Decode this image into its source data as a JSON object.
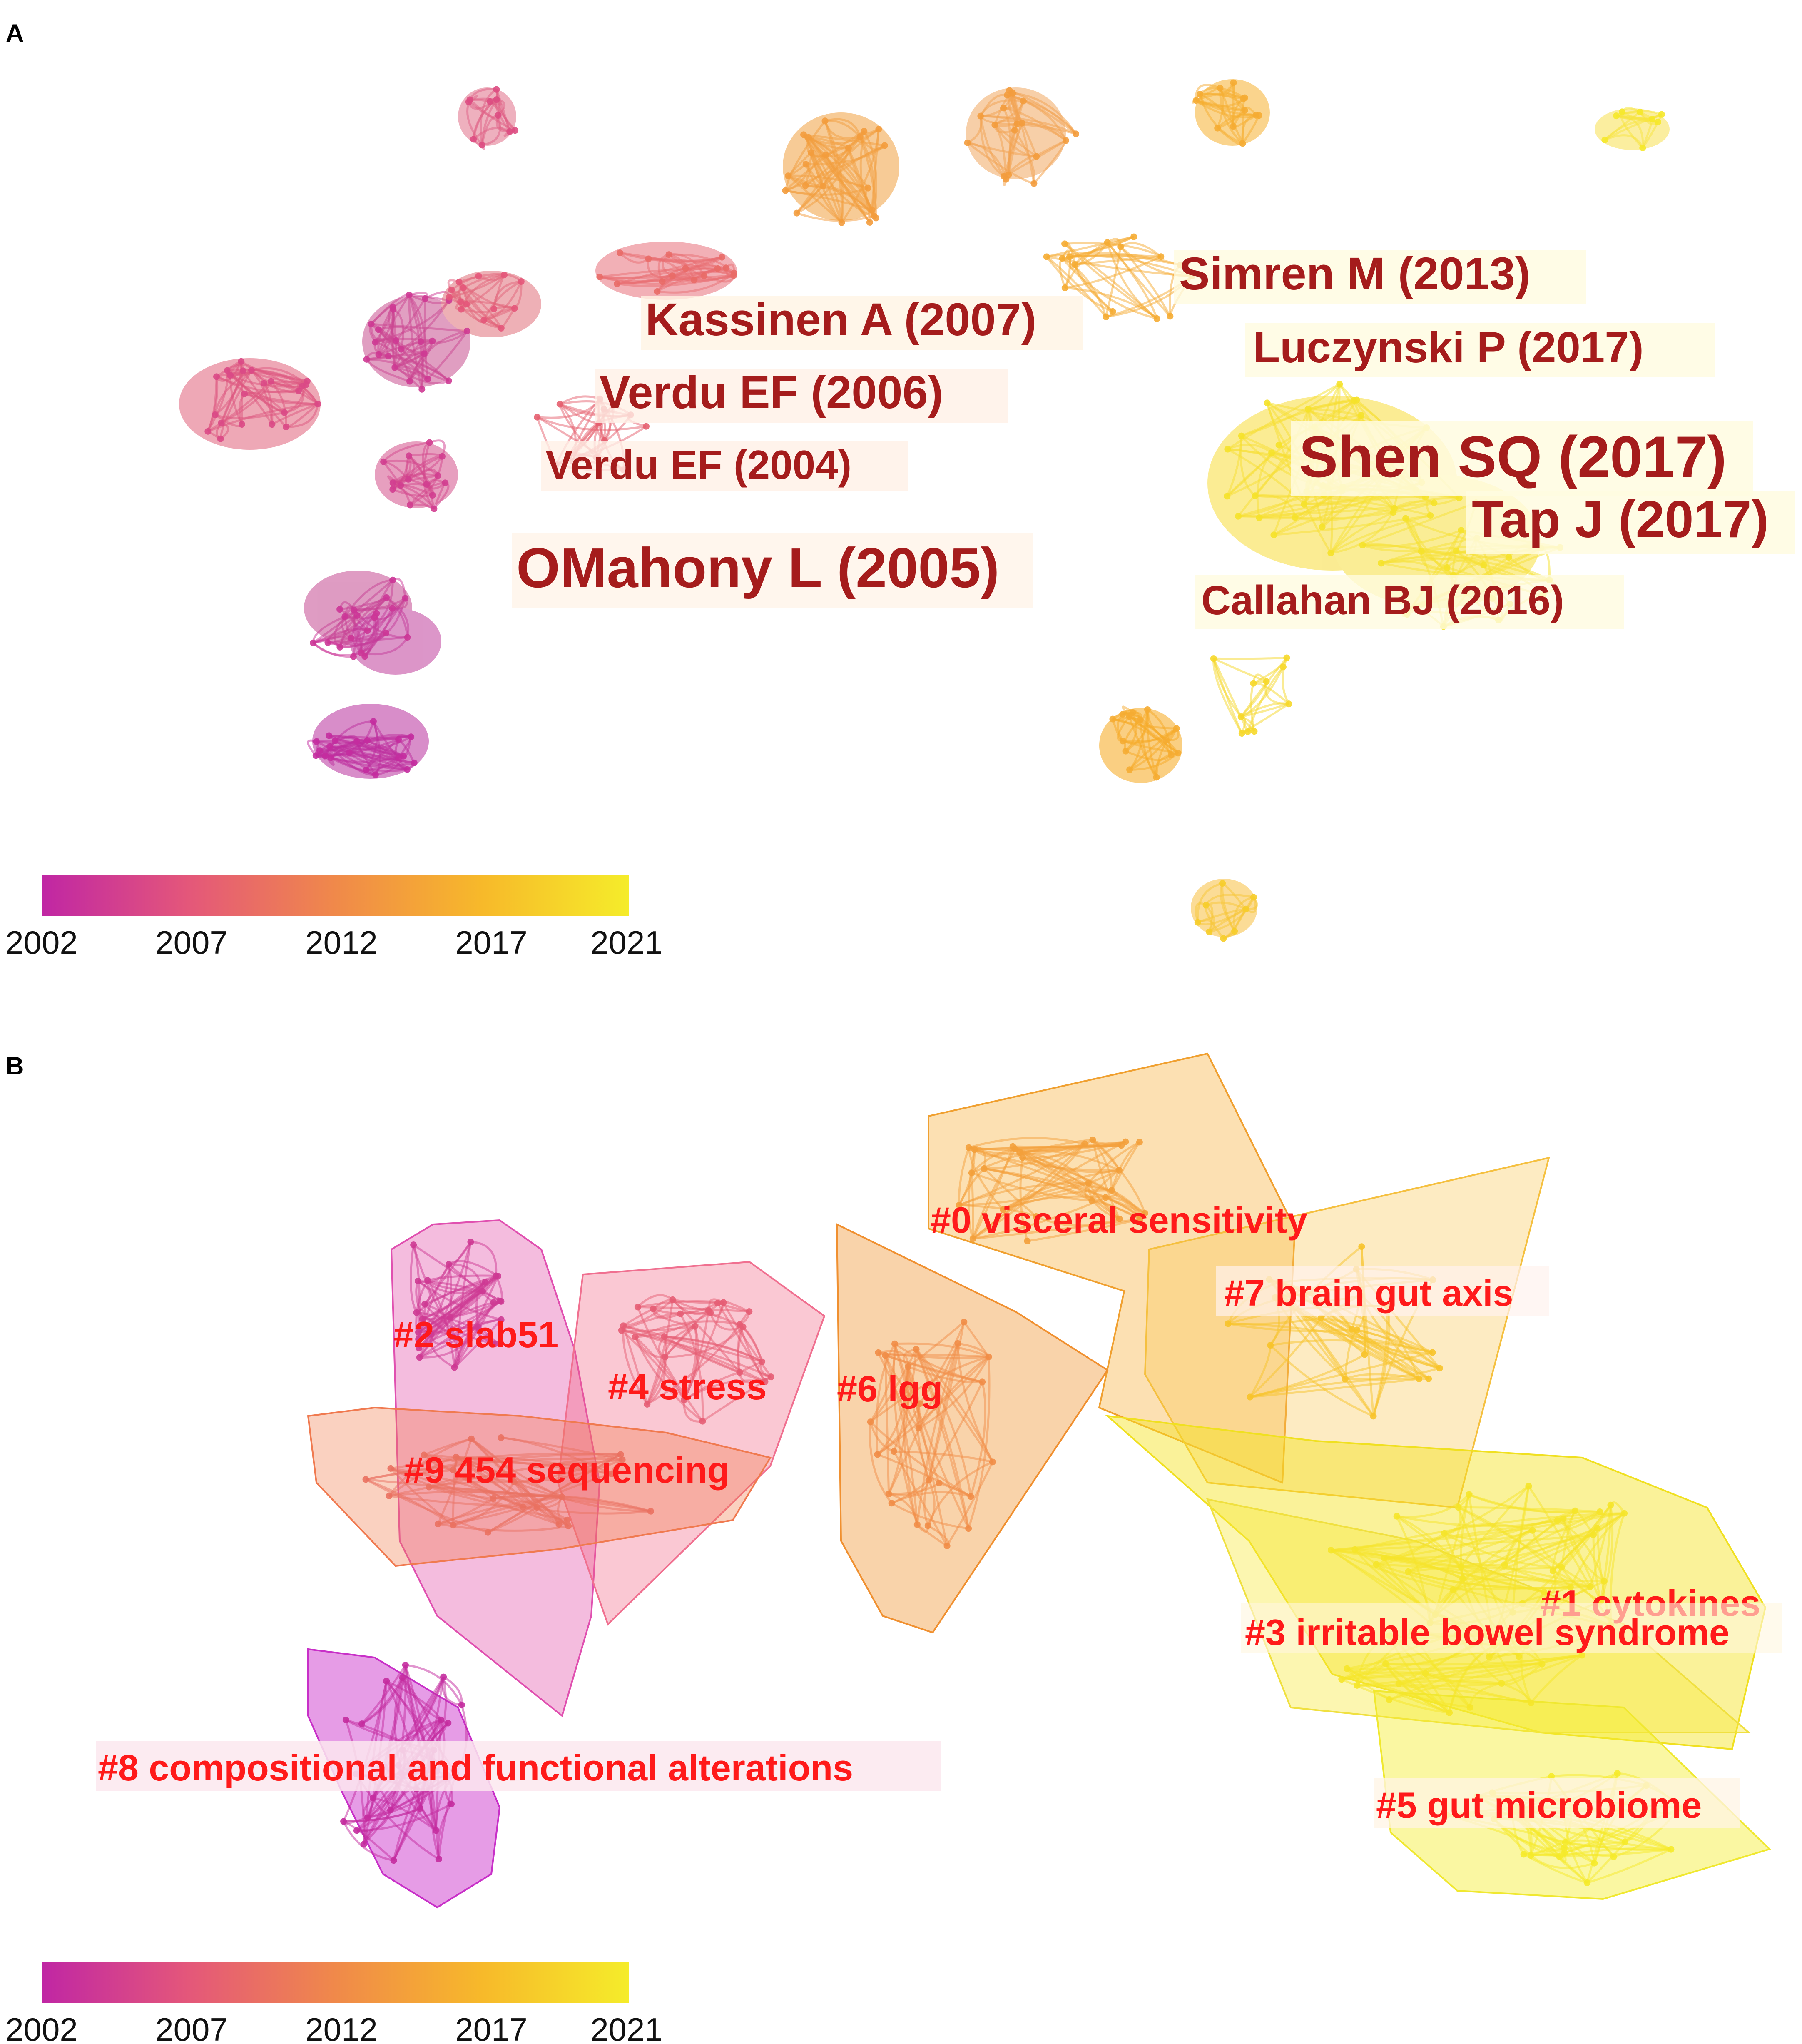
{
  "panels": [
    {
      "letter": "A"
    },
    {
      "letter": "B"
    }
  ],
  "panel_a": {
    "references": [
      {
        "label": "Simren M (2013)"
      },
      {
        "label": "Kassinen A (2007)"
      },
      {
        "label": "Luczynski P (2017)"
      },
      {
        "label": "Verdu EF (2006)"
      },
      {
        "label": "Shen SQ (2017)"
      },
      {
        "label": "Verdu EF (2004)"
      },
      {
        "label": "Tap J (2017)"
      },
      {
        "label": "OMahony L (2005)"
      },
      {
        "label": "Callahan BJ (2016)"
      }
    ]
  },
  "panel_b": {
    "clusters": [
      {
        "label": "#0 visceral sensitivity",
        "color": "#f5a623"
      },
      {
        "label": "#7 brain gut axis",
        "color": "#f9c74f"
      },
      {
        "label": "#2 slab51",
        "color": "#e040a0"
      },
      {
        "label": "#4 stress",
        "color": "#f06080"
      },
      {
        "label": "#6 lgg",
        "color": "#f0922b"
      },
      {
        "label": "#9 454 sequencing",
        "color": "#f07a4a"
      },
      {
        "label": "#1 cytokines",
        "color": "#f3e21c"
      },
      {
        "label": "#3 irritable bowel syndrome",
        "color": "#f7e83a"
      },
      {
        "label": "#8 compositional and functional alterations",
        "color": "#c824c8"
      },
      {
        "label": "#5 gut microbiome",
        "color": "#f5ee30"
      }
    ]
  },
  "colorbar": {
    "ticks": [
      "2002",
      "2007",
      "2012",
      "2017",
      "2021"
    ],
    "gradient": [
      "#c026a4",
      "#e4577a",
      "#f0894a",
      "#f7b92a",
      "#f5ec2a"
    ]
  }
}
